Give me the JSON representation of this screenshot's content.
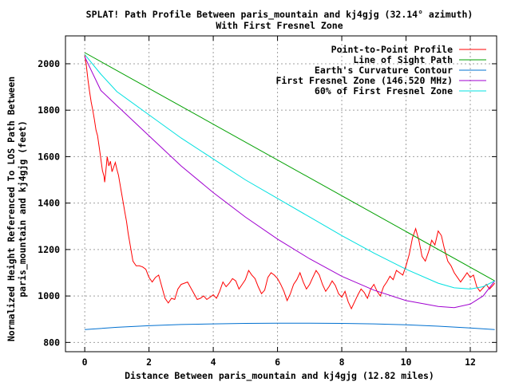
{
  "chart_data": {
    "type": "line",
    "title": "SPLAT! Path Profile Between paris_mountain and kj4gjg (32.14° azimuth)",
    "subtitle": "With First Fresnel Zone",
    "xlabel": "Distance Between paris_mountain and kj4gjg (12.82 miles)",
    "ylabel_line1": "Normalized Height Referenced To LOS Path Between",
    "ylabel_line2": "paris_mountain and kj4gjg (feet)",
    "xlim": [
      -0.6,
      12.82
    ],
    "ylim": [
      760,
      2120
    ],
    "grid": true,
    "legend_position": "top-right",
    "x_ticks": [
      0,
      2,
      4,
      6,
      8,
      10,
      12
    ],
    "y_ticks": [
      800,
      1000,
      1200,
      1400,
      1600,
      1800,
      2000
    ],
    "x_tick_labels": [
      "0",
      "2",
      "4",
      "6",
      "8",
      "10",
      "12"
    ],
    "y_tick_labels": [
      "800",
      "1000",
      "1200",
      "1400",
      "1600",
      "1800",
      "2000"
    ],
    "series": [
      {
        "name": "Point-to-Point Profile",
        "color": "#ff0000",
        "points": [
          [
            0,
            2040
          ],
          [
            0.05,
            1990
          ],
          [
            0.1,
            1930
          ],
          [
            0.15,
            1880
          ],
          [
            0.2,
            1835
          ],
          [
            0.25,
            1800
          ],
          [
            0.3,
            1760
          ],
          [
            0.35,
            1715
          ],
          [
            0.4,
            1690
          ],
          [
            0.45,
            1640
          ],
          [
            0.5,
            1590
          ],
          [
            0.55,
            1540
          ],
          [
            0.6,
            1515
          ],
          [
            0.62,
            1490
          ],
          [
            0.65,
            1530
          ],
          [
            0.7,
            1600
          ],
          [
            0.75,
            1560
          ],
          [
            0.8,
            1580
          ],
          [
            0.85,
            1535
          ],
          [
            0.9,
            1555
          ],
          [
            0.95,
            1575
          ],
          [
            1.0,
            1545
          ],
          [
            1.05,
            1520
          ],
          [
            1.1,
            1480
          ],
          [
            1.15,
            1440
          ],
          [
            1.2,
            1400
          ],
          [
            1.25,
            1360
          ],
          [
            1.3,
            1320
          ],
          [
            1.35,
            1270
          ],
          [
            1.4,
            1230
          ],
          [
            1.45,
            1190
          ],
          [
            1.5,
            1150
          ],
          [
            1.55,
            1140
          ],
          [
            1.6,
            1130
          ],
          [
            1.7,
            1130
          ],
          [
            1.8,
            1125
          ],
          [
            1.9,
            1115
          ],
          [
            2.0,
            1080
          ],
          [
            2.1,
            1060
          ],
          [
            2.2,
            1080
          ],
          [
            2.3,
            1090
          ],
          [
            2.4,
            1040
          ],
          [
            2.5,
            990
          ],
          [
            2.6,
            970
          ],
          [
            2.7,
            990
          ],
          [
            2.8,
            985
          ],
          [
            2.9,
            1030
          ],
          [
            3.0,
            1050
          ],
          [
            3.1,
            1055
          ],
          [
            3.2,
            1060
          ],
          [
            3.3,
            1035
          ],
          [
            3.4,
            1010
          ],
          [
            3.5,
            985
          ],
          [
            3.6,
            990
          ],
          [
            3.7,
            1000
          ],
          [
            3.8,
            985
          ],
          [
            3.9,
            995
          ],
          [
            4.0,
            1005
          ],
          [
            4.1,
            990
          ],
          [
            4.2,
            1020
          ],
          [
            4.3,
            1060
          ],
          [
            4.4,
            1040
          ],
          [
            4.5,
            1055
          ],
          [
            4.6,
            1075
          ],
          [
            4.7,
            1065
          ],
          [
            4.8,
            1030
          ],
          [
            4.9,
            1050
          ],
          [
            5.0,
            1070
          ],
          [
            5.1,
            1110
          ],
          [
            5.2,
            1090
          ],
          [
            5.3,
            1075
          ],
          [
            5.4,
            1040
          ],
          [
            5.5,
            1010
          ],
          [
            5.6,
            1025
          ],
          [
            5.7,
            1080
          ],
          [
            5.8,
            1100
          ],
          [
            5.9,
            1090
          ],
          [
            6.0,
            1075
          ],
          [
            6.1,
            1050
          ],
          [
            6.2,
            1020
          ],
          [
            6.3,
            980
          ],
          [
            6.4,
            1010
          ],
          [
            6.5,
            1050
          ],
          [
            6.6,
            1070
          ],
          [
            6.7,
            1100
          ],
          [
            6.8,
            1060
          ],
          [
            6.9,
            1030
          ],
          [
            7.0,
            1050
          ],
          [
            7.1,
            1080
          ],
          [
            7.2,
            1110
          ],
          [
            7.3,
            1090
          ],
          [
            7.4,
            1050
          ],
          [
            7.5,
            1020
          ],
          [
            7.6,
            1040
          ],
          [
            7.7,
            1065
          ],
          [
            7.8,
            1045
          ],
          [
            7.9,
            1010
          ],
          [
            8.0,
            995
          ],
          [
            8.1,
            1020
          ],
          [
            8.2,
            975
          ],
          [
            8.3,
            945
          ],
          [
            8.4,
            975
          ],
          [
            8.5,
            1005
          ],
          [
            8.6,
            1030
          ],
          [
            8.7,
            1015
          ],
          [
            8.8,
            990
          ],
          [
            8.9,
            1030
          ],
          [
            9.0,
            1050
          ],
          [
            9.1,
            1020
          ],
          [
            9.2,
            1000
          ],
          [
            9.3,
            1040
          ],
          [
            9.4,
            1060
          ],
          [
            9.5,
            1085
          ],
          [
            9.6,
            1070
          ],
          [
            9.7,
            1110
          ],
          [
            9.8,
            1100
          ],
          [
            9.9,
            1090
          ],
          [
            10.0,
            1130
          ],
          [
            10.1,
            1180
          ],
          [
            10.2,
            1250
          ],
          [
            10.3,
            1290
          ],
          [
            10.4,
            1240
          ],
          [
            10.5,
            1170
          ],
          [
            10.6,
            1150
          ],
          [
            10.7,
            1190
          ],
          [
            10.8,
            1240
          ],
          [
            10.9,
            1220
          ],
          [
            11.0,
            1280
          ],
          [
            11.1,
            1260
          ],
          [
            11.2,
            1200
          ],
          [
            11.3,
            1150
          ],
          [
            11.4,
            1130
          ],
          [
            11.5,
            1100
          ],
          [
            11.6,
            1080
          ],
          [
            11.7,
            1060
          ],
          [
            11.8,
            1080
          ],
          [
            11.9,
            1100
          ],
          [
            12.0,
            1080
          ],
          [
            12.1,
            1090
          ],
          [
            12.2,
            1040
          ],
          [
            12.3,
            1020
          ],
          [
            12.4,
            1035
          ],
          [
            12.5,
            1050
          ],
          [
            12.6,
            1030
          ],
          [
            12.7,
            1045
          ],
          [
            12.76,
            1055
          ]
        ]
      },
      {
        "name": "Line of Sight Path",
        "color": "#00a000",
        "points": [
          [
            0,
            2048
          ],
          [
            12.76,
            1065
          ]
        ]
      },
      {
        "name": "Earth's Curvature Contour",
        "color": "#0070d0",
        "points": [
          [
            0,
            855
          ],
          [
            1,
            865
          ],
          [
            2,
            872
          ],
          [
            3,
            877
          ],
          [
            4,
            880
          ],
          [
            5,
            882
          ],
          [
            6,
            883
          ],
          [
            7,
            883
          ],
          [
            8,
            882
          ],
          [
            9,
            880
          ],
          [
            10,
            876
          ],
          [
            11,
            870
          ],
          [
            12,
            862
          ],
          [
            12.76,
            855
          ]
        ]
      },
      {
        "name": "First Fresnel Zone (146.520 MHz)",
        "color": "#a000d0",
        "points": [
          [
            0,
            2030
          ],
          [
            0.5,
            1885
          ],
          [
            1,
            1820
          ],
          [
            2,
            1690
          ],
          [
            3,
            1560
          ],
          [
            4,
            1445
          ],
          [
            5,
            1340
          ],
          [
            6,
            1245
          ],
          [
            7,
            1160
          ],
          [
            8,
            1085
          ],
          [
            9,
            1025
          ],
          [
            10,
            980
          ],
          [
            11,
            955
          ],
          [
            11.5,
            950
          ],
          [
            12,
            965
          ],
          [
            12.4,
            1000
          ],
          [
            12.76,
            1065
          ]
        ]
      },
      {
        "name": "60% of First Fresnel Zone",
        "color": "#00e0e0",
        "points": [
          [
            0,
            2040
          ],
          [
            0.5,
            1955
          ],
          [
            1,
            1880
          ],
          [
            2,
            1780
          ],
          [
            3,
            1680
          ],
          [
            4,
            1590
          ],
          [
            5,
            1500
          ],
          [
            6,
            1420
          ],
          [
            7,
            1340
          ],
          [
            8,
            1260
          ],
          [
            9,
            1185
          ],
          [
            10,
            1115
          ],
          [
            11,
            1055
          ],
          [
            11.5,
            1035
          ],
          [
            12,
            1030
          ],
          [
            12.4,
            1040
          ],
          [
            12.76,
            1065
          ]
        ]
      }
    ]
  }
}
